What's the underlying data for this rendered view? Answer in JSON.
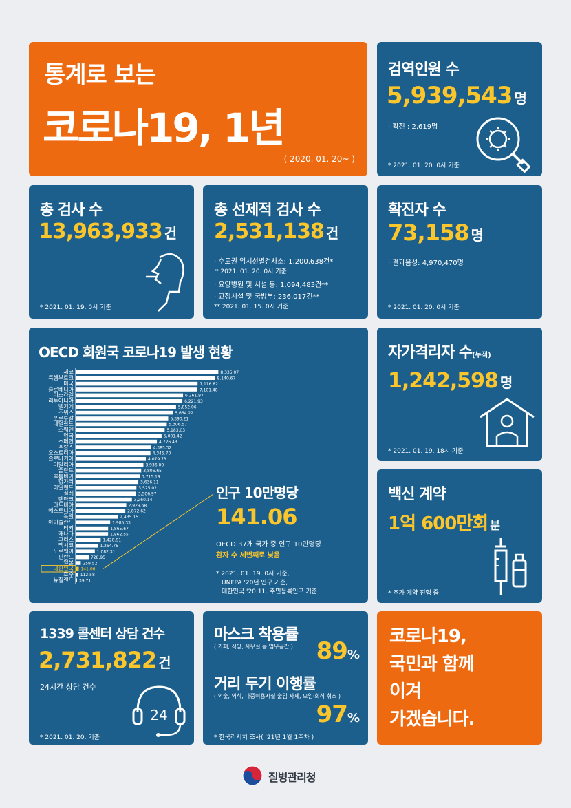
{
  "hero": {
    "line1": "통계로 보는",
    "line2": "코로나19, 1년",
    "date_range": "( 2020. 01. 20~ )"
  },
  "quarantine": {
    "title": "검역인원 수",
    "value": "5,939,543",
    "unit": "명",
    "detail": "· 확진 : 2,619명",
    "footnote": "* 2021. 01. 20. 0시 기준"
  },
  "total_tests": {
    "title": "총 검사 수",
    "value": "13,963,933",
    "unit": "건",
    "footnote": "* 2021. 01. 19. 0시 기준"
  },
  "preemptive_tests": {
    "title": "총 선제적 검사 수",
    "value": "2,531,138",
    "unit": "건",
    "line1": "· 수도권 임시선별검사소: 1,200,638건*",
    "line1_note": "* 2021. 01. 20. 0시 기준",
    "line2": "· 요양병원 및 시설 등: 1,094,483건**",
    "line3": "· 교정시설 및 국방부: 236,017건**",
    "line3_note": "** 2021. 01. 15. 0시 기준"
  },
  "confirmed": {
    "title": "확진자 수",
    "value": "73,158",
    "unit": "명",
    "detail": "· 결과음성: 4,970,470명",
    "footnote": "* 2021. 01. 20. 0시 기준"
  },
  "oecd": {
    "title": "OECD 회원국 코로나19 발생 현황",
    "callout_title": "인구 10만명당",
    "callout_value": "141.06",
    "callout_desc": "OECD 37개 국가 중 인구 10만명당",
    "callout_highlight": "환자 수 세번째로 낮음",
    "note1": "* 2021. 01. 19. 0시 기준,",
    "note2": "UNFPA '20년 인구 기준,",
    "note3": "대한민국 '20.11. 주민등록인구 기준"
  },
  "chart_data": {
    "type": "bar",
    "orientation": "horizontal",
    "title": "OECD 회원국 코로나19 발생 현황",
    "categories": [
      "체코",
      "룩셈부르크",
      "미국",
      "슬로베니아",
      "이스라엘",
      "리투아니아",
      "벨기에",
      "스위스",
      "포르투갈",
      "네덜란드",
      "스웨덴",
      "영국",
      "스페인",
      "프랑스",
      "오스트리아",
      "슬로바키아",
      "이탈리아",
      "폴란드",
      "콜롬비아",
      "헝가리",
      "아일랜드",
      "칠레",
      "덴마크",
      "라트비아",
      "에스토니아",
      "독일",
      "아이슬란드",
      "터키",
      "캐나다",
      "그리스",
      "멕시코",
      "노르웨이",
      "핀란드",
      "일본",
      "대한민국",
      "호주",
      "뉴질랜드"
    ],
    "values": [
      8335.07,
      8140.67,
      7116.82,
      7101.48,
      6261.97,
      6221.93,
      5852.06,
      5664.22,
      5390.21,
      5306.57,
      5183.03,
      5001.42,
      4726.43,
      4385.32,
      4345.7,
      4079.73,
      3936.0,
      3806.65,
      3715.19,
      3636.11,
      3525.02,
      3506.97,
      3260.14,
      2929.68,
      2872.62,
      2435.15,
      1985.33,
      1865.67,
      1862.55,
      1428.91,
      1264.75,
      1082.31,
      728.95,
      259.52,
      141.06,
      112.58,
      39.71
    ],
    "value_labels": [
      "8,335.07",
      "8,140.67",
      "7,116.82",
      "7,101.48",
      "6,261.97",
      "6,221.93",
      "5,852.06",
      "5,664.22",
      "5,390.21",
      "5,306.57",
      "5,183.03",
      "5,001.42",
      "4,726.43",
      "4,385.32",
      "4,345.70",
      "4,079.73",
      "3,936.00",
      "3,806.65",
      "3,715.19",
      "3,636.11",
      "3,525.02",
      "3,506.97",
      "3,260.14",
      "2,929.68",
      "2,872.62",
      "2,435.15",
      "1,985.33",
      "1,865.67",
      "1,862.55",
      "1,428.91",
      "1,264.75",
      "1,082.31",
      "728.95",
      "259.52",
      "141.06",
      "112.58",
      "39.71"
    ],
    "highlight": "대한민국",
    "xlim": [
      0,
      8400
    ],
    "colors": {
      "bar": "#ffffff",
      "highlight": "#fbc52c"
    }
  },
  "self_quarantine": {
    "title": "자가격리자 수",
    "title_suffix": "(누적)",
    "value": "1,242,598",
    "unit": "명",
    "footnote": "* 2021. 01. 19. 18시 기준"
  },
  "vaccine": {
    "title": "백신 계약",
    "value": "1억 600만회",
    "unit": "분",
    "footnote": "* 추가 계약 진행 중"
  },
  "callcenter": {
    "title": "1339 콜센터 상담 건수",
    "value": "2,731,822",
    "unit": "건",
    "detail": "24시간 상담 건수",
    "icon_text": "24",
    "footnote": "* 2021. 01. 20. 기준"
  },
  "mask": {
    "title1": "마스크 착용률",
    "sub1": "( 카페, 식당, 사무실 등 업무공간 )",
    "rate1": "89",
    "title2": "거리 두기 이행률",
    "sub2": "( 외출, 외식, 다중이용시설 출입 자제, 모임·회식 취소 )",
    "rate2": "97",
    "pct": "%",
    "footnote": "* 한국리서치 조사( '21년 1월 1주차 )"
  },
  "closing": {
    "line1": "코로나19,",
    "line2": "국민과 함께",
    "line3": "이겨",
    "line4": "가겠습니다."
  },
  "footer": {
    "org": "질병관리청"
  },
  "colors": {
    "blue": "#1c5f8c",
    "orange": "#ee6a10",
    "yellow": "#fbc52c",
    "background": "#edeef2"
  }
}
